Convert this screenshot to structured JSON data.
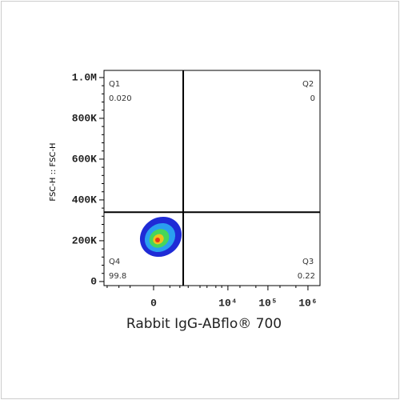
{
  "chart_data": {
    "type": "quadrant-gate",
    "x_label": "Rabbit IgG-ABflo® 700",
    "y_label": "FSC-H :: FSC-H",
    "xscale": "biexponential",
    "xlim": [
      -2400,
      2000000
    ],
    "xticks": [
      0,
      {
        "value": 10000,
        "label": "10⁴"
      },
      {
        "value": 100000,
        "label": "10⁵"
      },
      {
        "value": 1000000,
        "label": "10⁶"
      }
    ],
    "ylim": [
      -20000,
      1035000
    ],
    "yticks": [
      0,
      {
        "value": 200000,
        "label": "200K"
      },
      {
        "value": 400000,
        "label": "400K"
      },
      {
        "value": 600000,
        "label": "600K"
      },
      {
        "value": 800000,
        "label": "800K"
      },
      {
        "value": 1000000,
        "label": "1.0M"
      }
    ],
    "gate": {
      "x": 740,
      "y": 340000
    },
    "quadrants": {
      "names": [
        "Q1",
        "Q2",
        "Q3",
        "Q4"
      ],
      "values": [
        0.02,
        0,
        0.22,
        99.8
      ],
      "value_labels": [
        "0.020",
        "0",
        "0.22",
        "99.8"
      ]
    }
  }
}
